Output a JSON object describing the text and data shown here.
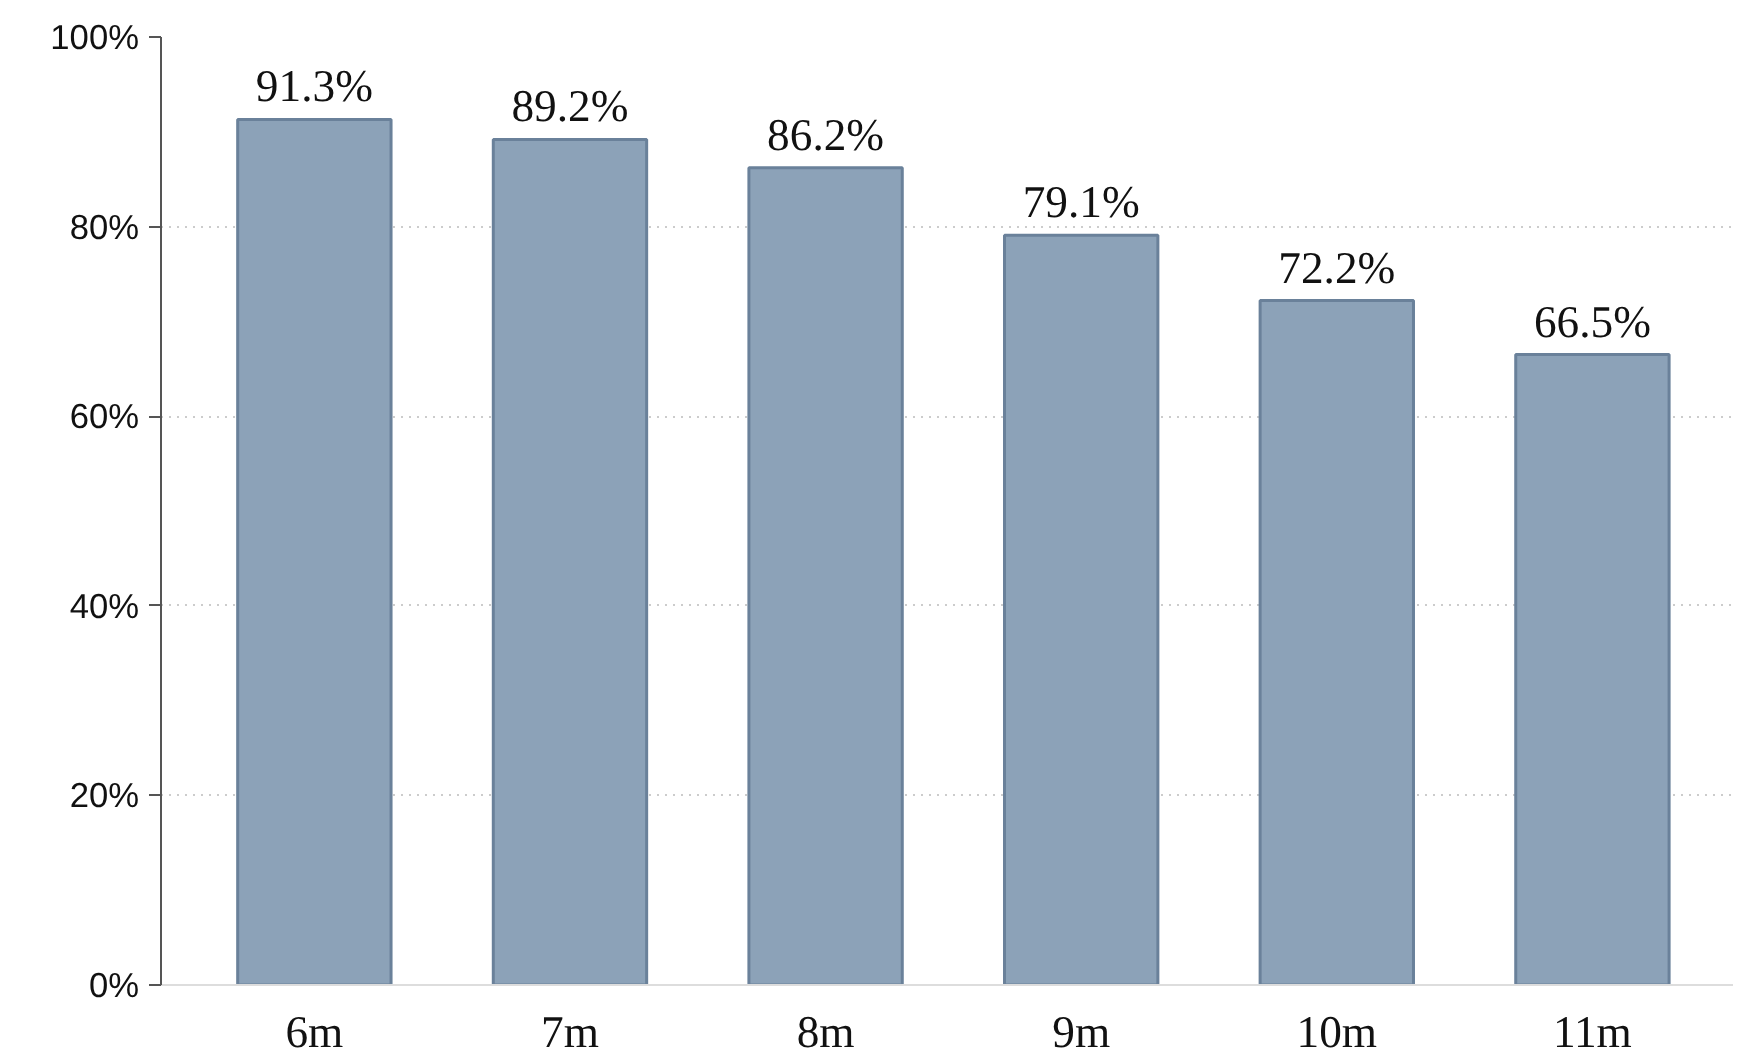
{
  "chart_data": {
    "type": "bar",
    "categories": [
      "6m",
      "7m",
      "8m",
      "9m",
      "10m",
      "11m"
    ],
    "values": [
      91.3,
      89.2,
      86.2,
      79.1,
      72.2,
      66.5
    ],
    "color": "#8ca2b8",
    "value_labels": [
      "91.3%",
      "89.2%",
      "86.2%",
      "79.1%",
      "72.2%",
      "66.5%"
    ],
    "ylim": [
      0,
      100
    ],
    "yticks": [
      {
        "value": 0,
        "label": "0%"
      },
      {
        "value": 20,
        "label": "20%"
      },
      {
        "value": 40,
        "label": "40%"
      },
      {
        "value": 60,
        "label": "60%"
      },
      {
        "value": 80,
        "label": "80%"
      },
      {
        "value": 100,
        "label": "100%"
      }
    ],
    "grid": "y"
  }
}
